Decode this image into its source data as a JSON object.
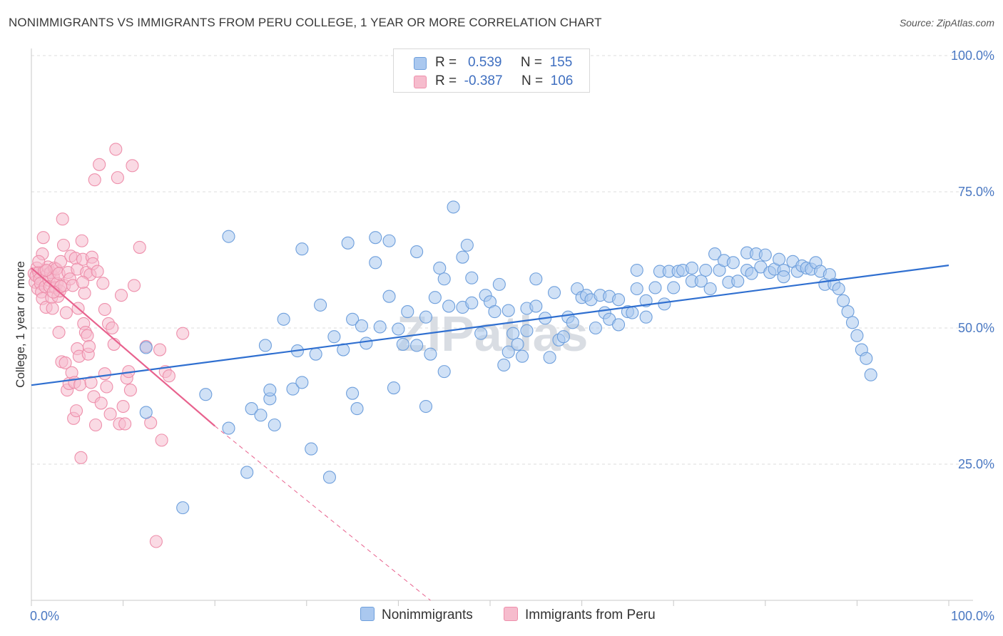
{
  "title": "NONIMMIGRANTS VS IMMIGRANTS FROM PERU COLLEGE, 1 YEAR OR MORE CORRELATION CHART",
  "source": "Source: ZipAtlas.com",
  "watermark": "ZIPatlas",
  "legend": {
    "rows": [
      {
        "r_label": "R =",
        "r_value": "0.539",
        "n_label": "N =",
        "n_value": "155"
      },
      {
        "r_label": "R =",
        "r_value": "-0.387",
        "n_label": "N =",
        "n_value": "106"
      }
    ],
    "series": [
      "Nonimmigrants",
      "Immigrants from Peru"
    ]
  },
  "colors": {
    "blue_fill": "#aac8ef",
    "blue_stroke": "#6e9fdc",
    "blue_line": "#2f6fd0",
    "pink_fill": "#f6bccd",
    "pink_stroke": "#ee8fab",
    "pink_line": "#e8628e",
    "tick_text": "#4a78c2",
    "grid": "#dcdcdc"
  },
  "chart_data": {
    "type": "scatter",
    "title": "NONIMMIGRANTS VS IMMIGRANTS FROM PERU COLLEGE, 1 YEAR OR MORE CORRELATION CHART",
    "xlabel": "",
    "ylabel": "College, 1 year or more",
    "xlim": [
      0,
      100
    ],
    "ylim": [
      0,
      100
    ],
    "x_tick_labels": [
      "0.0%",
      "100.0%"
    ],
    "y_ticks": [
      25,
      50,
      75,
      100
    ],
    "y_tick_labels": [
      "25.0%",
      "50.0%",
      "75.0%",
      "100.0%"
    ],
    "grid": true,
    "legend_position": "top-center",
    "series": [
      {
        "name": "Nonimmigrants",
        "r": 0.539,
        "n": 155,
        "trend": {
          "x": [
            0,
            100
          ],
          "y": [
            39.5,
            61.5
          ]
        },
        "points": [
          [
            12.5,
            46.4
          ],
          [
            12.5,
            34.5
          ],
          [
            16.5,
            17
          ],
          [
            19,
            37.8
          ],
          [
            21.5,
            31.6
          ],
          [
            21.5,
            66.8
          ],
          [
            23.5,
            23.5
          ],
          [
            24,
            35.2
          ],
          [
            25,
            34
          ],
          [
            25.5,
            46.8
          ],
          [
            26,
            37
          ],
          [
            26,
            38.6
          ],
          [
            26.5,
            32.2
          ],
          [
            27.5,
            51.6
          ],
          [
            28.5,
            38.8
          ],
          [
            29,
            45.8
          ],
          [
            29.5,
            64.5
          ],
          [
            29.5,
            40
          ],
          [
            30.5,
            27.8
          ],
          [
            31,
            45.2
          ],
          [
            31.5,
            54.2
          ],
          [
            32.5,
            22.6
          ],
          [
            33,
            48.4
          ],
          [
            34,
            46
          ],
          [
            34.5,
            65.6
          ],
          [
            35,
            38
          ],
          [
            35,
            51.6
          ],
          [
            35.5,
            35.2
          ],
          [
            36,
            50.4
          ],
          [
            36.5,
            47.2
          ],
          [
            37.5,
            66.6
          ],
          [
            37.5,
            62
          ],
          [
            38,
            50.2
          ],
          [
            39,
            55.8
          ],
          [
            39,
            66
          ],
          [
            39.5,
            39
          ],
          [
            40,
            49.8
          ],
          [
            40.5,
            47
          ],
          [
            41,
            53
          ],
          [
            42,
            64
          ],
          [
            42,
            46.8
          ],
          [
            43,
            35.6
          ],
          [
            43,
            52
          ],
          [
            43.5,
            45.2
          ],
          [
            44,
            55.6
          ],
          [
            44.5,
            61
          ],
          [
            45,
            59
          ],
          [
            45,
            42
          ],
          [
            45.5,
            54
          ],
          [
            46,
            72.2
          ],
          [
            47,
            63
          ],
          [
            47,
            53.8
          ],
          [
            47.5,
            65.2
          ],
          [
            48,
            54.6
          ],
          [
            48,
            59.2
          ],
          [
            49,
            49
          ],
          [
            49.5,
            56
          ],
          [
            50,
            54.8
          ],
          [
            50.5,
            53
          ],
          [
            51,
            58
          ],
          [
            51.5,
            43.2
          ],
          [
            52,
            53.2
          ],
          [
            52,
            45.6
          ],
          [
            52.5,
            49
          ],
          [
            53,
            47
          ],
          [
            53.5,
            44.8
          ],
          [
            54,
            53.6
          ],
          [
            54,
            49.5
          ],
          [
            55,
            54
          ],
          [
            55,
            59
          ],
          [
            56,
            51.8
          ],
          [
            56.5,
            44.6
          ],
          [
            57,
            56.5
          ],
          [
            57.5,
            47.8
          ],
          [
            58,
            48.4
          ],
          [
            58.5,
            52
          ],
          [
            59,
            51
          ],
          [
            59.5,
            57.2
          ],
          [
            60,
            55.6
          ],
          [
            60.5,
            56
          ],
          [
            61,
            55.2
          ],
          [
            61.5,
            50
          ],
          [
            62,
            56
          ],
          [
            62.5,
            52.8
          ],
          [
            63,
            55.8
          ],
          [
            63,
            51.6
          ],
          [
            64,
            50.6
          ],
          [
            64,
            55.2
          ],
          [
            65,
            53
          ],
          [
            65.5,
            52.8
          ],
          [
            66,
            57.2
          ],
          [
            66,
            60.6
          ],
          [
            67,
            55
          ],
          [
            67,
            52
          ],
          [
            68,
            57.4
          ],
          [
            68.5,
            60.4
          ],
          [
            69,
            54.4
          ],
          [
            69.5,
            60.4
          ],
          [
            70,
            57.4
          ],
          [
            70.5,
            60.4
          ],
          [
            71,
            60.6
          ],
          [
            72,
            58.6
          ],
          [
            72,
            61
          ],
          [
            73,
            58.6
          ],
          [
            73.5,
            60.6
          ],
          [
            74,
            57.2
          ],
          [
            74.5,
            63.6
          ],
          [
            75,
            60.6
          ],
          [
            75.5,
            62.4
          ],
          [
            76,
            58.4
          ],
          [
            76.5,
            62
          ],
          [
            77,
            58.6
          ],
          [
            78,
            63.8
          ],
          [
            78,
            60.6
          ],
          [
            78.5,
            60
          ],
          [
            79,
            63.6
          ],
          [
            79.5,
            61.2
          ],
          [
            80,
            63.4
          ],
          [
            80.5,
            60.2
          ],
          [
            81,
            60.8
          ],
          [
            81.5,
            62.6
          ],
          [
            82,
            60.6
          ],
          [
            82,
            59.4
          ],
          [
            83,
            62.2
          ],
          [
            83.5,
            60.4
          ],
          [
            84,
            61.4
          ],
          [
            84.5,
            61
          ],
          [
            85,
            60.8
          ],
          [
            85.5,
            62
          ],
          [
            86,
            60.4
          ],
          [
            86.5,
            58
          ],
          [
            87,
            59.8
          ],
          [
            87.5,
            58
          ],
          [
            88,
            57.2
          ],
          [
            88.5,
            55
          ],
          [
            89,
            53
          ],
          [
            89.5,
            51
          ],
          [
            90,
            48.6
          ],
          [
            90.5,
            46
          ],
          [
            91,
            44.4
          ],
          [
            91.5,
            41.4
          ]
        ]
      },
      {
        "name": "Immigrants from Peru",
        "r": -0.387,
        "n": 106,
        "trend": {
          "x": [
            0,
            20
          ],
          "y": [
            61,
            32
          ]
        },
        "trend_extended": {
          "x": [
            20,
            43.5
          ],
          "y": [
            32,
            0
          ]
        },
        "points": [
          [
            0.3,
            60
          ],
          [
            0.4,
            58.4
          ],
          [
            0.5,
            59.6
          ],
          [
            0.6,
            61
          ],
          [
            0.7,
            57.2
          ],
          [
            0.8,
            60.2
          ],
          [
            0.9,
            59
          ],
          [
            1,
            58.2
          ],
          [
            1.1,
            56.6
          ],
          [
            1.2,
            55.4
          ],
          [
            1.2,
            63.6
          ],
          [
            1.3,
            66.6
          ],
          [
            1.4,
            60.4
          ],
          [
            1.5,
            57.6
          ],
          [
            1.6,
            53.8
          ],
          [
            1.7,
            59.8
          ],
          [
            1.8,
            61.2
          ],
          [
            1.9,
            58.8
          ],
          [
            2,
            57.6
          ],
          [
            2.1,
            60.2
          ],
          [
            2.2,
            55.6
          ],
          [
            2.3,
            53.6
          ],
          [
            2.4,
            59.4
          ],
          [
            2.5,
            61
          ],
          [
            2.6,
            57.4
          ],
          [
            2.7,
            60.8
          ],
          [
            2.8,
            58.2
          ],
          [
            2.9,
            55.8
          ],
          [
            3,
            60
          ],
          [
            3,
            49.2
          ],
          [
            3.1,
            56.8
          ],
          [
            3.2,
            62.2
          ],
          [
            3.3,
            43.8
          ],
          [
            3.4,
            70
          ],
          [
            3.5,
            65.2
          ],
          [
            3.6,
            57.8
          ],
          [
            3.7,
            43.6
          ],
          [
            3.8,
            52.8
          ],
          [
            3.9,
            38.6
          ],
          [
            4,
            60.2
          ],
          [
            4.1,
            39.8
          ],
          [
            4.2,
            59
          ],
          [
            4.3,
            63.2
          ],
          [
            4.4,
            41.8
          ],
          [
            4.5,
            57.8
          ],
          [
            4.6,
            33.4
          ],
          [
            4.7,
            40
          ],
          [
            4.8,
            62.8
          ],
          [
            4.9,
            34.8
          ],
          [
            5,
            60.8
          ],
          [
            5,
            46.2
          ],
          [
            5.1,
            53.6
          ],
          [
            5.2,
            44.8
          ],
          [
            5.3,
            39.6
          ],
          [
            5.4,
            26.2
          ],
          [
            5.5,
            66
          ],
          [
            5.6,
            62.6
          ],
          [
            5.7,
            50.8
          ],
          [
            5.8,
            56.4
          ],
          [
            5.9,
            49.2
          ],
          [
            6,
            60.2
          ],
          [
            6.1,
            48.6
          ],
          [
            6.2,
            45.2
          ],
          [
            6.3,
            46.6
          ],
          [
            6.4,
            59.8
          ],
          [
            6.5,
            40
          ],
          [
            6.6,
            63
          ],
          [
            6.7,
            61.8
          ],
          [
            6.8,
            37.4
          ],
          [
            6.9,
            77.2
          ],
          [
            7,
            32.2
          ],
          [
            7.2,
            60.4
          ],
          [
            7.4,
            80
          ],
          [
            7.6,
            36.2
          ],
          [
            7.8,
            58.2
          ],
          [
            8,
            53.4
          ],
          [
            8,
            41.6
          ],
          [
            8.2,
            39.2
          ],
          [
            8.4,
            50.8
          ],
          [
            8.6,
            34.2
          ],
          [
            8.8,
            50
          ],
          [
            9,
            47
          ],
          [
            9.2,
            82.8
          ],
          [
            9.4,
            77.6
          ],
          [
            9.6,
            32.4
          ],
          [
            9.8,
            56
          ],
          [
            10,
            35.6
          ],
          [
            10.2,
            32.4
          ],
          [
            10.4,
            40.8
          ],
          [
            10.6,
            42
          ],
          [
            10.8,
            38.6
          ],
          [
            11,
            79.8
          ],
          [
            11.2,
            57.8
          ],
          [
            11.8,
            64.8
          ],
          [
            12.5,
            46.6
          ],
          [
            13,
            32.6
          ],
          [
            13.6,
            10.8
          ],
          [
            14,
            46
          ],
          [
            14.2,
            29.4
          ],
          [
            14.6,
            42
          ],
          [
            15,
            41.2
          ],
          [
            16.5,
            49
          ],
          [
            3.2,
            57.6
          ],
          [
            2.4,
            56.6
          ],
          [
            1.6,
            60.6
          ],
          [
            0.8,
            62.2
          ],
          [
            5.6,
            58.4
          ]
        ]
      }
    ]
  }
}
